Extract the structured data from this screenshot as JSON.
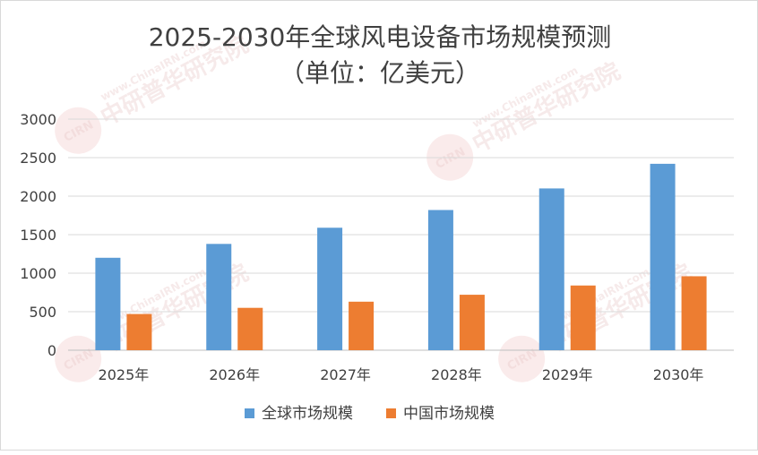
{
  "chart_data": {
    "type": "bar",
    "title": "2025-2030年全球风电设备市场规模预测",
    "subtitle": "（单位：亿美元）",
    "xlabel": "",
    "ylabel": "",
    "categories": [
      "2025年",
      "2026年",
      "2027年",
      "2028年",
      "2029年",
      "2030年"
    ],
    "series": [
      {
        "name": "全球市场规模",
        "color": "#5b9bd5",
        "values": [
          1200,
          1380,
          1590,
          1820,
          2100,
          2420
        ]
      },
      {
        "name": "中国市场规模",
        "color": "#ed7d31",
        "values": [
          470,
          550,
          630,
          720,
          840,
          960
        ]
      }
    ],
    "ylim": [
      0,
      3000
    ],
    "yticks": [
      0,
      500,
      1000,
      1500,
      2000,
      2500,
      3000
    ],
    "grid": true,
    "legend_position": "bottom"
  },
  "watermark": {
    "brand": "中研普华研究院",
    "url": "www.ChinaIRN.com",
    "logo": "CIRN"
  }
}
